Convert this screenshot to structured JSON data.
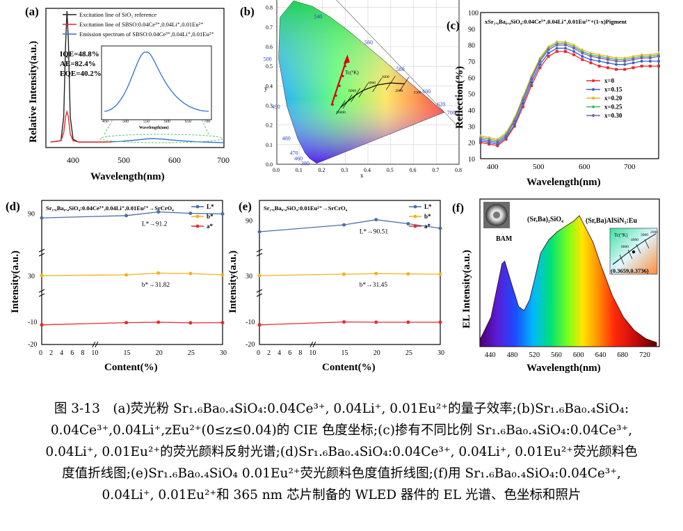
{
  "panels": {
    "a": {
      "letter": "(a)",
      "xlabel": "Wavelength(nm)",
      "ylabel": "Relative Intensity(a.u.)",
      "xticks": [
        "400",
        "500",
        "600",
        "700"
      ],
      "legend": [
        {
          "text": "Excitation line of SiO₂ reference",
          "color": "#222222"
        },
        {
          "text": "Excitation line of SBSO:0.04Ce³⁺,0.04Li⁺,0.01Eu²⁺",
          "color": "#e8292d"
        },
        {
          "text": "Emission spectrum of SBSO:0.04Ce³⁺,0.04Li⁺,0.01Eu²⁺",
          "color": "#2f6fd6"
        }
      ],
      "metrics": [
        "IQE=48.8%",
        "AE=82.4%",
        "EQE=40.2%"
      ],
      "inset_xlabel": "Wavelength(nm)",
      "inset_xticks": [
        "450",
        "500",
        "550",
        "600",
        "650",
        "700"
      ]
    },
    "b": {
      "letter": "(b)",
      "xlabel": "x",
      "ylabel": "y",
      "xticks": [
        "0.0",
        "0.1",
        "0.2",
        "0.3",
        "0.4",
        "0.5",
        "0.6",
        "0.7",
        "0.8"
      ],
      "yticks": [
        "0.0",
        "0.1",
        "0.2",
        "0.3",
        "0.4",
        "0.5",
        "0.6",
        "0.7",
        "0.8",
        "0.9"
      ],
      "locus_labels": [
        {
          "t": "520",
          "x": 0.074,
          "y": 0.834
        },
        {
          "t": "540",
          "x": 0.23,
          "y": 0.754
        },
        {
          "t": "560",
          "x": 0.373,
          "y": 0.624
        },
        {
          "t": "580",
          "x": 0.512,
          "y": 0.487
        },
        {
          "t": "600",
          "x": 0.627,
          "y": 0.373
        },
        {
          "t": "620",
          "x": 0.691,
          "y": 0.308
        },
        {
          "t": "700",
          "x": 0.735,
          "y": 0.265
        },
        {
          "t": "500",
          "x": 0.008,
          "y": 0.538
        },
        {
          "t": "490",
          "x": 0.045,
          "y": 0.295
        },
        {
          "t": "480",
          "x": 0.091,
          "y": 0.133
        },
        {
          "t": "470",
          "x": 0.124,
          "y": 0.058
        },
        {
          "t": "460",
          "x": 0.144,
          "y": 0.03
        },
        {
          "t": "380",
          "x": 0.174,
          "y": 0.005
        }
      ],
      "tc_label": "Tc(°K)",
      "cct_labels": [
        "10000",
        "6000",
        "4000",
        "3000",
        "2000",
        "1500"
      ]
    },
    "c": {
      "letter": "(c)",
      "title": "xSr₁.₆Ba₀.₄SiO₄:0.04Ce³⁺,0.04Li⁺,0.01Eu²⁺+(1-x)Pigment",
      "xlabel": "Wavelength(nm)",
      "ylabel": "Reflection(%)",
      "xticks": [
        "400",
        "500",
        "600",
        "700"
      ],
      "yticks": [
        "10",
        "20",
        "30",
        "40",
        "50",
        "60",
        "70",
        "80",
        "90",
        "100"
      ],
      "legend": [
        {
          "text": "x=0",
          "color": "#e8292d"
        },
        {
          "text": "x=0.15",
          "color": "#3a5fcd"
        },
        {
          "text": "x=0.20",
          "color": "#f2b01e"
        },
        {
          "text": "x=0.25",
          "color": "#3cb878"
        },
        {
          "text": "x=0.30",
          "color": "#7d5bb0"
        }
      ]
    },
    "d": {
      "letter": "(d)",
      "title": "Sr₁.₆Ba₀.₄SiO₄:0.04Ce³⁺,0.04Li⁺,0.01Eu²⁺→SrCrO₄",
      "xlabel": "Content(%)",
      "ylabel": "Intensity(a.u.)",
      "xticks": [
        "0",
        "2",
        "4",
        "6",
        "8",
        "10",
        "15",
        "20",
        "25",
        "30"
      ],
      "yticks": [
        "90",
        "30",
        "-10",
        "-20"
      ],
      "legend": [
        {
          "text": "L*",
          "color": "#4a6fa5"
        },
        {
          "text": "b*",
          "color": "#f2b01e"
        },
        {
          "text": "a*",
          "color": "#e8292d"
        }
      ],
      "ann_L": "L*→91.2",
      "ann_b": "b*→31.82"
    },
    "e": {
      "letter": "(e)",
      "title": "Sr₁.₆Ba₀.₄SiO₄:0.01Eu²⁺→SrCrO₄",
      "xlabel": "Content(%)",
      "ylabel": "Intensity(a.u.)",
      "xticks": [
        "0",
        "2",
        "4",
        "6",
        "8",
        "10",
        "15",
        "20",
        "25",
        "30"
      ],
      "yticks": [
        "90",
        "30",
        "-10",
        "-20"
      ],
      "legend": [
        {
          "text": "L*",
          "color": "#4a6fa5"
        },
        {
          "text": "b*",
          "color": "#f2b01e"
        },
        {
          "text": "a*",
          "color": "#e8292d"
        }
      ],
      "ann_L": "L*→90.51",
      "ann_b": "b*→31.45"
    },
    "f": {
      "letter": "(f)",
      "xlabel": "Wavelength(nm)",
      "ylabel": "EL Intensity(a.u.)",
      "xticks": [
        "440",
        "480",
        "520",
        "560",
        "600",
        "640",
        "680",
        "720"
      ],
      "peak_labels": [
        "BAM",
        "(Sr,Ba)₂SiO₄",
        "(Sr,Ba)AlSiN₃:Eu"
      ],
      "inset_tc": "Tc(°K)",
      "inset_coord": "(0.3659,0.3736)",
      "inset_ticks": [
        "6000",
        "4000",
        "3000",
        "2000"
      ]
    }
  },
  "chart_data": [
    {
      "panel": "a",
      "type": "line",
      "xlabel": "Wavelength(nm)",
      "ylabel": "Relative Intensity(a.u.)",
      "xlim": [
        320,
        700
      ],
      "series": [
        {
          "name": "Excitation line of SiO₂ reference",
          "x": [
            330,
            352,
            358,
            362,
            365,
            368,
            372,
            378,
            390,
            450
          ],
          "y": [
            0.01,
            0.02,
            0.2,
            0.75,
            1.0,
            0.78,
            0.2,
            0.03,
            0.01,
            0.01
          ]
        },
        {
          "name": "Excitation line of SBSO:0.04Ce³⁺,0.04Li⁺,0.01Eu²⁺",
          "x": [
            330,
            352,
            358,
            362,
            365,
            368,
            372,
            378,
            390,
            450
          ],
          "y": [
            0.01,
            0.02,
            0.08,
            0.2,
            0.24,
            0.2,
            0.07,
            0.02,
            0.01,
            0.01
          ]
        },
        {
          "name": "Emission spectrum of SBSO:0.04Ce³⁺,0.04Li⁺,0.01Eu²⁺",
          "x": [
            450,
            480,
            510,
            540,
            550,
            570,
            600,
            640,
            700
          ],
          "y": [
            0.01,
            0.015,
            0.025,
            0.035,
            0.036,
            0.032,
            0.022,
            0.012,
            0.005
          ]
        }
      ]
    },
    {
      "panel": "c",
      "type": "line",
      "xlabel": "Wavelength(nm)",
      "ylabel": "Reflection(%)",
      "xlim": [
        360,
        780
      ],
      "ylim": [
        10,
        100
      ],
      "x": [
        360,
        380,
        400,
        420,
        440,
        460,
        480,
        500,
        520,
        540,
        560,
        580,
        600,
        620,
        640,
        660,
        680,
        700,
        720,
        740,
        760,
        780
      ],
      "series": [
        {
          "name": "x=0",
          "values": [
            20,
            19,
            18,
            22,
            30,
            42,
            55,
            66,
            73,
            76,
            76,
            74,
            71,
            69,
            67,
            66,
            65,
            65,
            66,
            67,
            67,
            67
          ]
        },
        {
          "name": "x=0.15",
          "values": [
            21,
            20,
            19,
            23,
            31,
            44,
            57,
            68,
            75,
            78,
            78,
            76,
            73,
            71,
            70,
            69,
            68,
            68,
            69,
            70,
            70,
            70
          ]
        },
        {
          "name": "x=0.20",
          "values": [
            24,
            23,
            22,
            26,
            35,
            48,
            61,
            72,
            79,
            82,
            82,
            80,
            77,
            75,
            74,
            73,
            72,
            72,
            73,
            74,
            74,
            75
          ]
        },
        {
          "name": "x=0.25",
          "values": [
            23,
            22,
            21,
            25,
            34,
            47,
            60,
            71,
            78,
            81,
            81,
            79,
            76,
            74,
            73,
            72,
            71,
            71,
            72,
            73,
            73,
            74
          ]
        },
        {
          "name": "x=0.30",
          "values": [
            22,
            21,
            20,
            24,
            33,
            46,
            59,
            70,
            77,
            80,
            80,
            78,
            75,
            73,
            72,
            71,
            70,
            70,
            71,
            72,
            72,
            73
          ]
        }
      ]
    },
    {
      "panel": "d",
      "type": "line",
      "xlabel": "Content(%)",
      "ylabel": "Intensity(a.u.)",
      "x": [
        0,
        15,
        20,
        25,
        30
      ],
      "series": [
        {
          "name": "L*",
          "values": [
            86,
            88,
            91.2,
            90,
            89.5
          ]
        },
        {
          "name": "b*",
          "values": [
            30,
            30.5,
            31.82,
            31.5,
            30.5
          ]
        },
        {
          "name": "a*",
          "values": [
            -11.5,
            -10.5,
            -10.3,
            -10.6,
            -10.5
          ]
        }
      ]
    },
    {
      "panel": "e",
      "type": "line",
      "xlabel": "Content(%)",
      "ylabel": "Intensity(a.u.)",
      "x": [
        0,
        15,
        20,
        25,
        30
      ],
      "series": [
        {
          "name": "L*",
          "values": [
            80,
            86,
            90.51,
            87,
            83
          ]
        },
        {
          "name": "b*",
          "values": [
            30,
            31,
            31.45,
            31.2,
            31
          ]
        },
        {
          "name": "a*",
          "values": [
            -11.5,
            -10.2,
            -10.3,
            -10.3,
            -10.3
          ]
        }
      ]
    },
    {
      "panel": "f",
      "type": "area",
      "xlabel": "Wavelength(nm)",
      "ylabel": "EL Intensity(a.u.)",
      "x": [
        420,
        440,
        450,
        460,
        465,
        475,
        490,
        500,
        510,
        520,
        530,
        545,
        560,
        575,
        590,
        600,
        610,
        625,
        640,
        660,
        680,
        700,
        720,
        740
      ],
      "values": [
        0.05,
        0.22,
        0.42,
        0.62,
        0.64,
        0.5,
        0.3,
        0.27,
        0.35,
        0.52,
        0.7,
        0.8,
        0.86,
        0.9,
        0.94,
        0.98,
        0.9,
        0.78,
        0.6,
        0.38,
        0.22,
        0.12,
        0.06,
        0.03
      ]
    }
  ],
  "caption": {
    "lines": [
      "图 3-13　(a)荧光粉 Sr₁.₆Ba₀.₄SiO₄:0.04Ce³⁺, 0.04Li⁺, 0.01Eu²⁺的量子效率;(b)Sr₁.₆Ba₀.₄SiO₄:",
      "0.04Ce³⁺,0.04Li⁺,zEu²⁺(0≤z≤0.04)的 CIE 色度坐标;(c)掺有不同比例 Sr₁.₆Ba₀.₄SiO₄:0.04Ce³⁺,",
      "0.04Li⁺, 0.01Eu²⁺的荧光颜料反射光谱;(d)Sr₁.₆Ba₀.₄SiO₄:0.04Ce³⁺, 0.04Li⁺, 0.01Eu²⁺荧光颜料色",
      "度值折线图;(e)Sr₁.₆Ba₀.₄SiO₄ 0.01Eu²⁺荧光颜料色度值折线图;(f)用 Sr₁.₆Ba₀.₄SiO₄:0.04Ce³⁺,",
      "0.04Li⁺, 0.01Eu²⁺和 365 nm 芯片制备的 WLED 器件的 EL 光谱、色坐标和照片"
    ]
  }
}
